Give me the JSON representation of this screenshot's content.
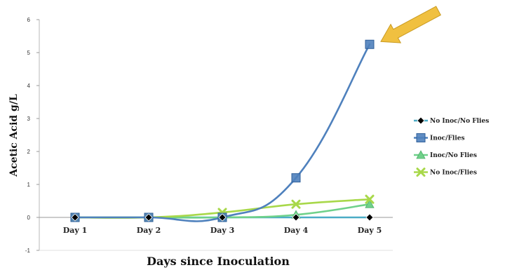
{
  "chart_data": {
    "type": "line",
    "categories": [
      "Day 1",
      "Day 2",
      "Day 3",
      "Day 4",
      "Day 5"
    ],
    "xlabel": "Days since Inoculation",
    "ylabel": "Acetic Acid g/L",
    "ylim": [
      -1,
      6
    ],
    "yticks": [
      -1,
      0,
      1,
      2,
      3,
      4,
      5,
      6
    ],
    "grid": false,
    "legend_position": "right",
    "series": [
      {
        "name": "No Inoc/No Flies",
        "marker": "diamond",
        "color": "#4bacc6",
        "marker_color": "#000000",
        "values": [
          0,
          0,
          0,
          0,
          0
        ]
      },
      {
        "name": "Inoc/Flies",
        "marker": "square",
        "color": "#4f81bd",
        "marker_color": "#4f81bd",
        "values": [
          0,
          0,
          0,
          1.2,
          5.25
        ]
      },
      {
        "name": "Inoc/No Flies",
        "marker": "triangle",
        "color": "#6fd18a",
        "marker_color": "#6fd18a",
        "values": [
          0,
          0,
          0,
          0.08,
          0.4
        ]
      },
      {
        "name": "No Inoc/Flies",
        "marker": "x",
        "color": "#a8d84a",
        "marker_color": "#a8d84a",
        "values": [
          0,
          0,
          0.15,
          0.4,
          0.55
        ]
      }
    ],
    "annotations": [
      {
        "type": "arrow",
        "color": "#f0c040",
        "points_to": "Inoc/Flies Day 5"
      }
    ]
  }
}
